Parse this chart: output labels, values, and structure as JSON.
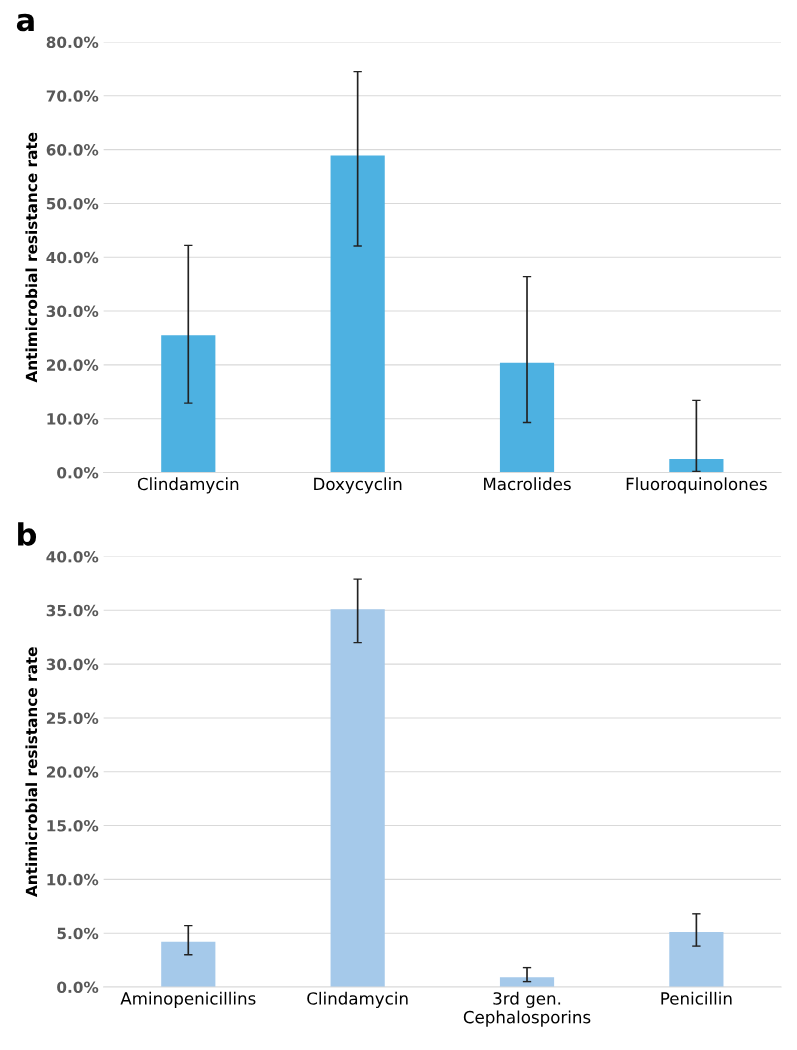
{
  "chart_data": [
    {
      "type": "bar",
      "title": "a",
      "ylabel": "Antimicrobial resistance rate",
      "categories": [
        "Clindamycin",
        "Doxycyclin",
        "Macrolides",
        "Fluoroquinolones"
      ],
      "values": [
        25.5,
        58.9,
        20.4,
        2.5
      ],
      "color": "#4db1e1",
      "errors": [
        [
          12.9,
          42.2
        ],
        [
          42.1,
          74.5
        ],
        [
          9.3,
          36.4
        ],
        [
          0.2,
          13.4
        ]
      ],
      "ylim": [
        0,
        80
      ],
      "yticks": [
        {
          "value": 0,
          "label": "0.0%"
        },
        {
          "value": 10,
          "label": "10.0%"
        },
        {
          "value": 20,
          "label": "20.0%"
        },
        {
          "value": 30,
          "label": "30.0%"
        },
        {
          "value": 40,
          "label": "40.0%"
        },
        {
          "value": 50,
          "label": "50.0%"
        },
        {
          "value": 60,
          "label": "60.0%"
        },
        {
          "value": 70,
          "label": "70.0%"
        },
        {
          "value": 80,
          "label": "80.0%"
        }
      ],
      "grid": "y"
    },
    {
      "type": "bar",
      "title": "b",
      "ylabel": "Antimicrobial resistance rate",
      "categories": [
        "Aminopenicillins",
        "Clindamycin",
        "3rd gen.\nCephalosporins",
        "Penicillin"
      ],
      "values": [
        4.2,
        35.1,
        0.9,
        5.1
      ],
      "color": "#a5c9ea",
      "errors": [
        [
          3.0,
          5.7
        ],
        [
          32.0,
          37.9
        ],
        [
          0.5,
          1.8
        ],
        [
          3.8,
          6.8
        ]
      ],
      "ylim": [
        0,
        40
      ],
      "yticks": [
        {
          "value": 0,
          "label": "0.0%"
        },
        {
          "value": 5,
          "label": "5.0%"
        },
        {
          "value": 10,
          "label": "10.0%"
        },
        {
          "value": 15,
          "label": "15.0%"
        },
        {
          "value": 20,
          "label": "20.0%"
        },
        {
          "value": 25,
          "label": "25.0%"
        },
        {
          "value": 30,
          "label": "30.0%"
        },
        {
          "value": 35,
          "label": "35.0%"
        },
        {
          "value": 40,
          "label": "40.0%"
        }
      ],
      "grid": "y"
    }
  ]
}
